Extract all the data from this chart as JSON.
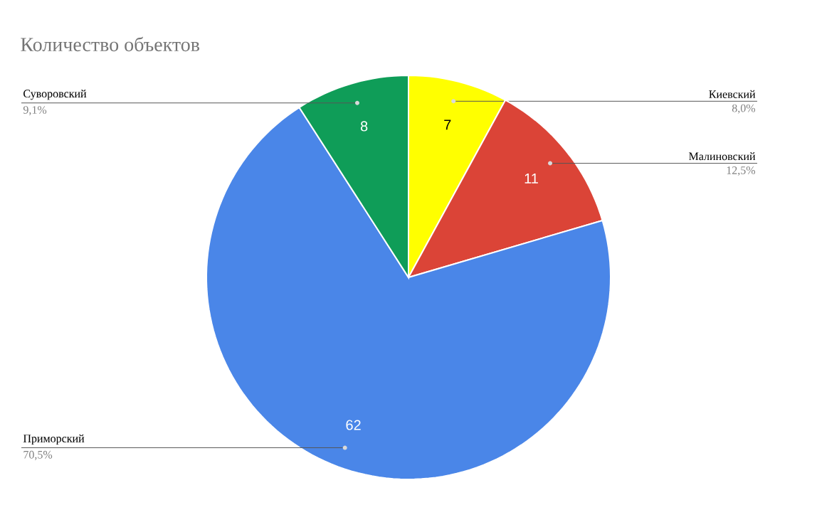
{
  "chart_data": {
    "type": "pie",
    "title": "Количество объектов",
    "categories": [
      "Киевский",
      "Малиновский",
      "Приморский",
      "Суворовский"
    ],
    "values": [
      7,
      11,
      62,
      8
    ],
    "colors": [
      "#ffff00",
      "#db4437",
      "#4a86e8",
      "#0f9d58"
    ],
    "annotations": [
      "8,0%",
      "12,5%",
      "70,5%",
      "9,1%"
    ],
    "data_labels": true
  }
}
